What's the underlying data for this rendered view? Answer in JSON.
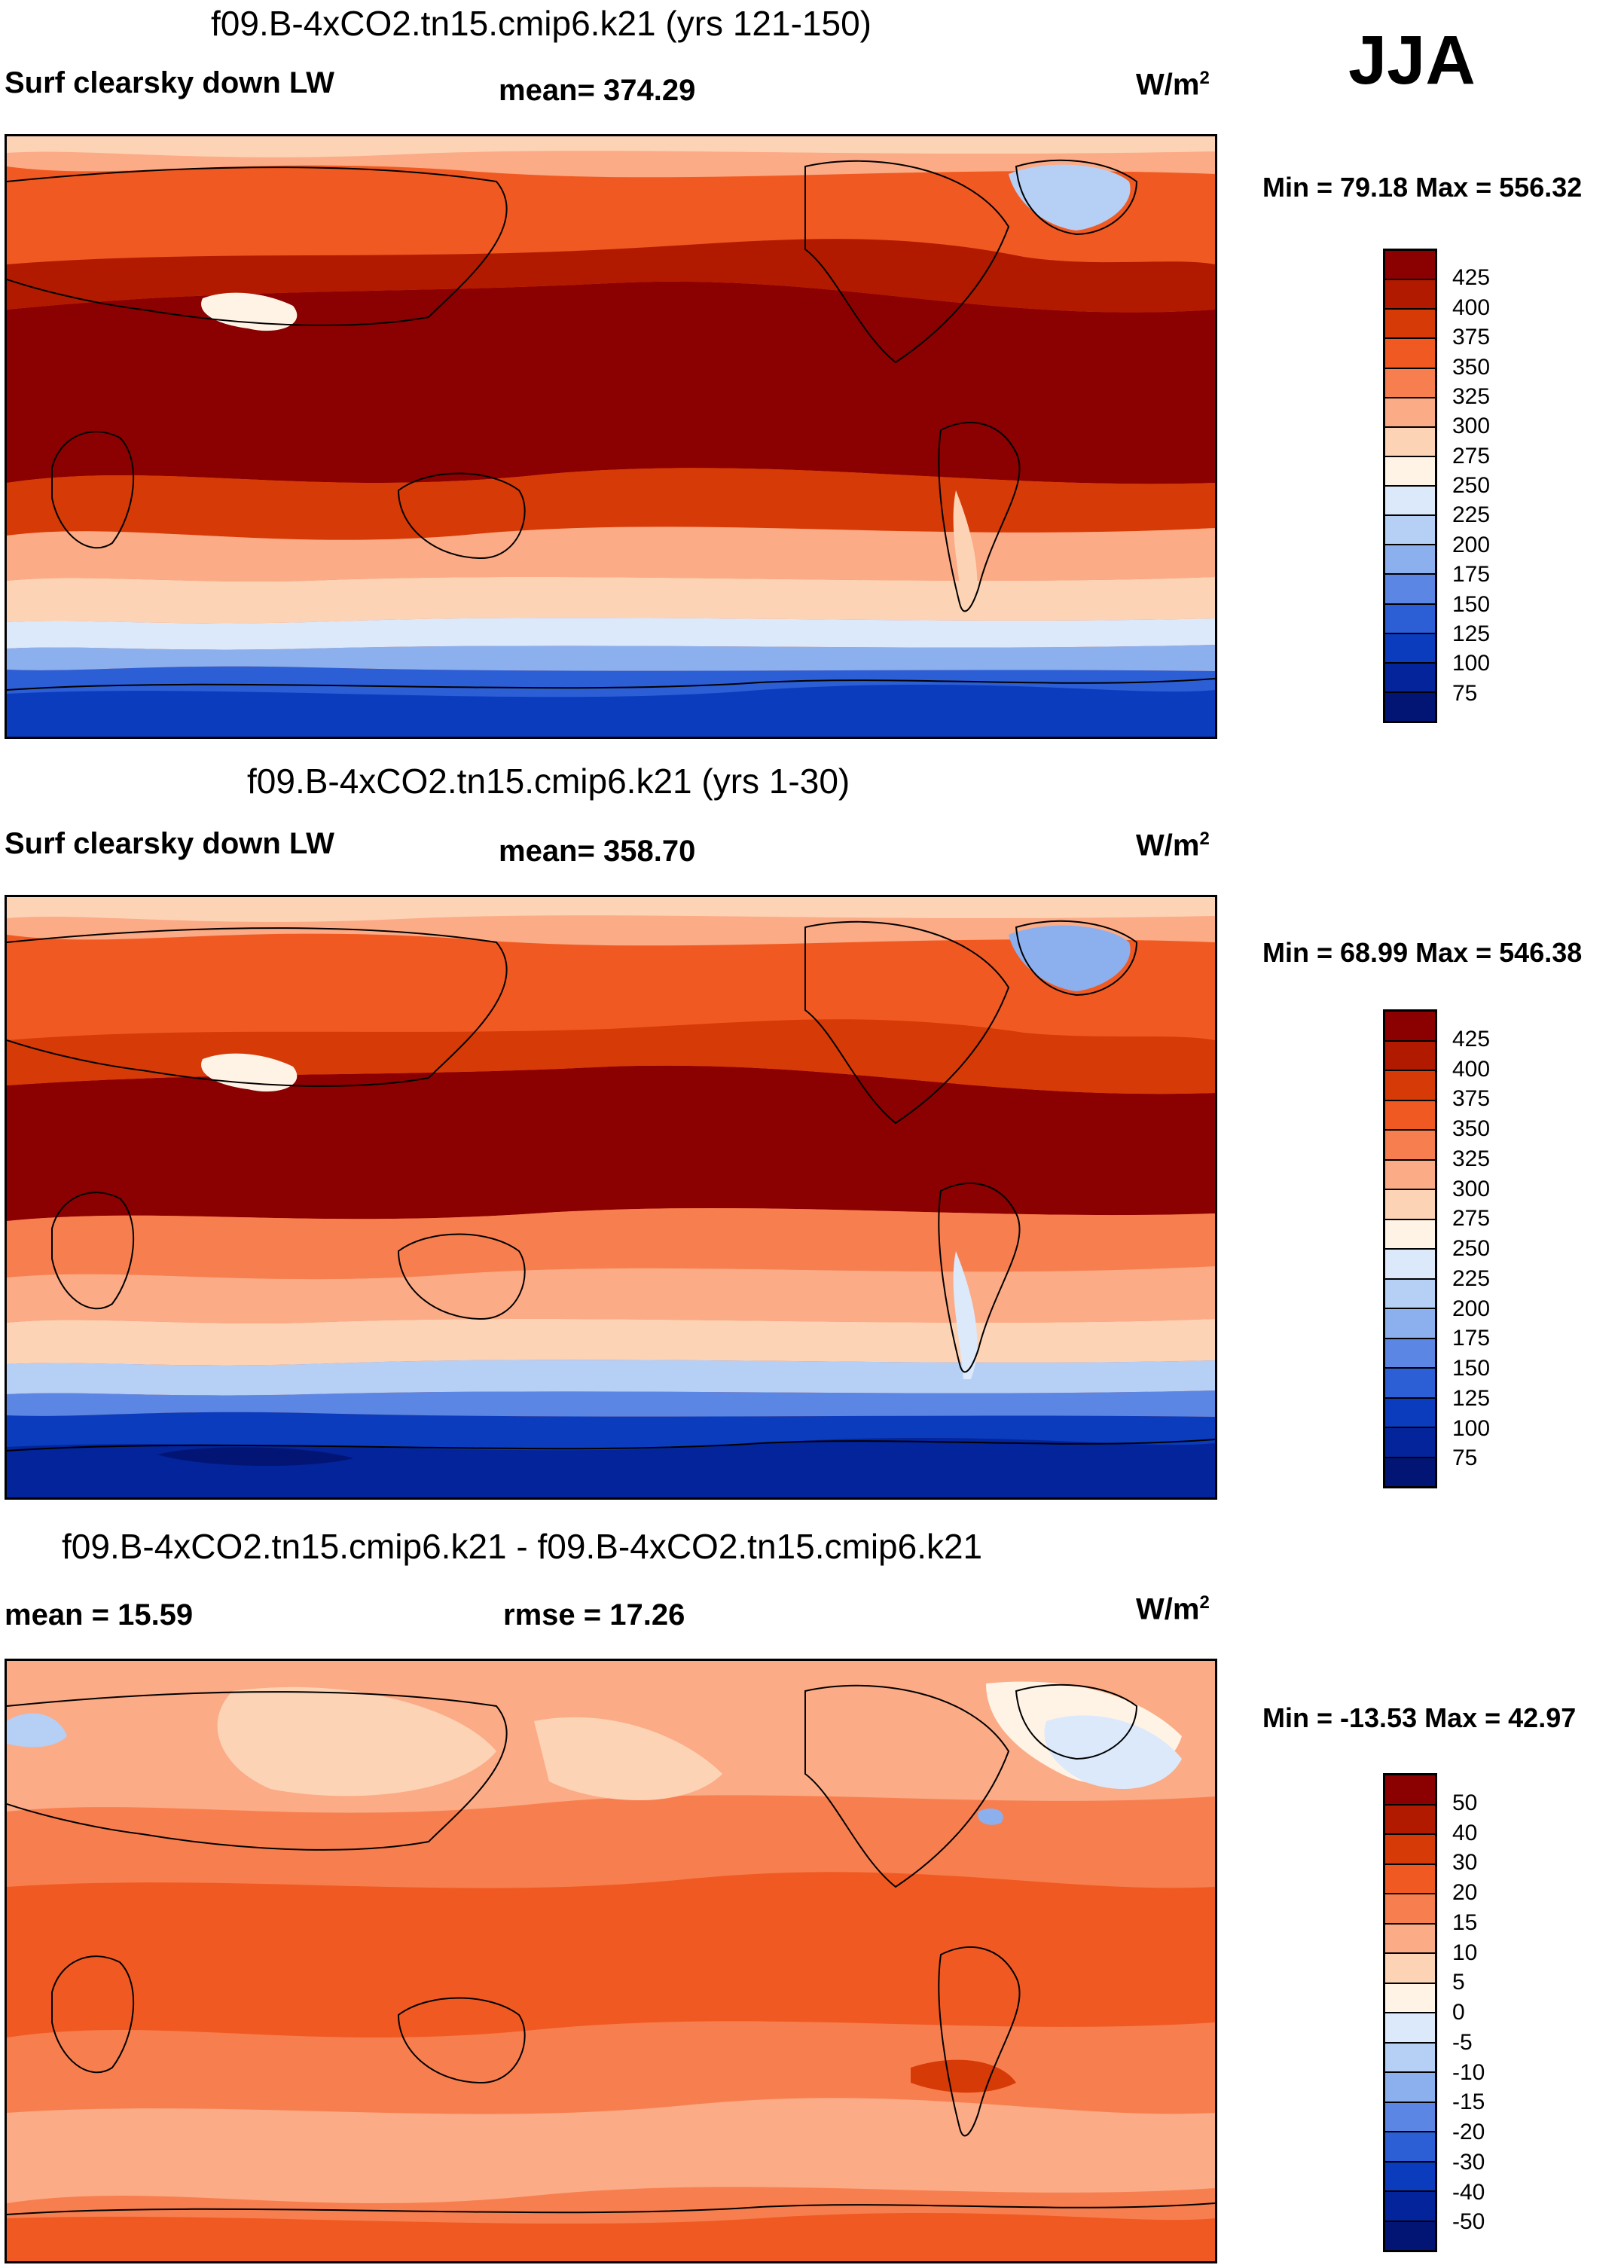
{
  "season": "JJA",
  "panels": [
    {
      "title": "f09.B-4xCO2.tn15.cmip6.k21 (yrs 121-150)",
      "left_label": "Surf clearsky down LW",
      "mid_label": "mean= 374.29",
      "units": "W/m",
      "units_exp": "2",
      "minmax": "Min =  79.18 Max = 556.32",
      "colorbar": {
        "colors": [
          "#8b0000",
          "#b21a00",
          "#d63a06",
          "#f05a22",
          "#f77f4f",
          "#fbab86",
          "#fdd3b6",
          "#fff3e6",
          "#dce9fb",
          "#b6cff5",
          "#8cb0ee",
          "#5b86e3",
          "#2c5ed6",
          "#0a3cbd",
          "#03249a",
          "#021575"
        ],
        "labels": [
          "425",
          "400",
          "375",
          "350",
          "325",
          "300",
          "275",
          "250",
          "225",
          "200",
          "175",
          "150",
          "125",
          "100",
          "75"
        ]
      }
    },
    {
      "title": "f09.B-4xCO2.tn15.cmip6.k21 (yrs 1-30)",
      "left_label": "Surf clearsky down LW",
      "mid_label": "mean= 358.70",
      "units": "W/m",
      "units_exp": "2",
      "minmax": "Min =  68.99 Max = 546.38",
      "colorbar": {
        "colors": [
          "#8b0000",
          "#b21a00",
          "#d63a06",
          "#f05a22",
          "#f77f4f",
          "#fbab86",
          "#fdd3b6",
          "#fff3e6",
          "#dce9fb",
          "#b6cff5",
          "#8cb0ee",
          "#5b86e3",
          "#2c5ed6",
          "#0a3cbd",
          "#03249a",
          "#021575"
        ],
        "labels": [
          "425",
          "400",
          "375",
          "350",
          "325",
          "300",
          "275",
          "250",
          "225",
          "200",
          "175",
          "150",
          "125",
          "100",
          "75"
        ]
      }
    },
    {
      "title": "f09.B-4xCO2.tn15.cmip6.k21 - f09.B-4xCO2.tn15.cmip6.k21",
      "left_label": "mean =  15.59",
      "mid_label": "rmse =  17.26",
      "units": "W/m",
      "units_exp": "2",
      "minmax": "Min = -13.53 Max =  42.97",
      "colorbar": {
        "colors": [
          "#8b0000",
          "#b21a00",
          "#d63a06",
          "#f05a22",
          "#f77f4f",
          "#fbab86",
          "#fdd3b6",
          "#fff3e6",
          "#dce9fb",
          "#b6cff5",
          "#8cb0ee",
          "#5b86e3",
          "#2c5ed6",
          "#0a3cbd",
          "#03249a",
          "#021575"
        ],
        "labels": [
          "50",
          "40",
          "30",
          "20",
          "15",
          "10",
          "5",
          "0",
          "-5",
          "-10",
          "-15",
          "-20",
          "-30",
          "-40",
          "-50"
        ]
      }
    }
  ]
}
